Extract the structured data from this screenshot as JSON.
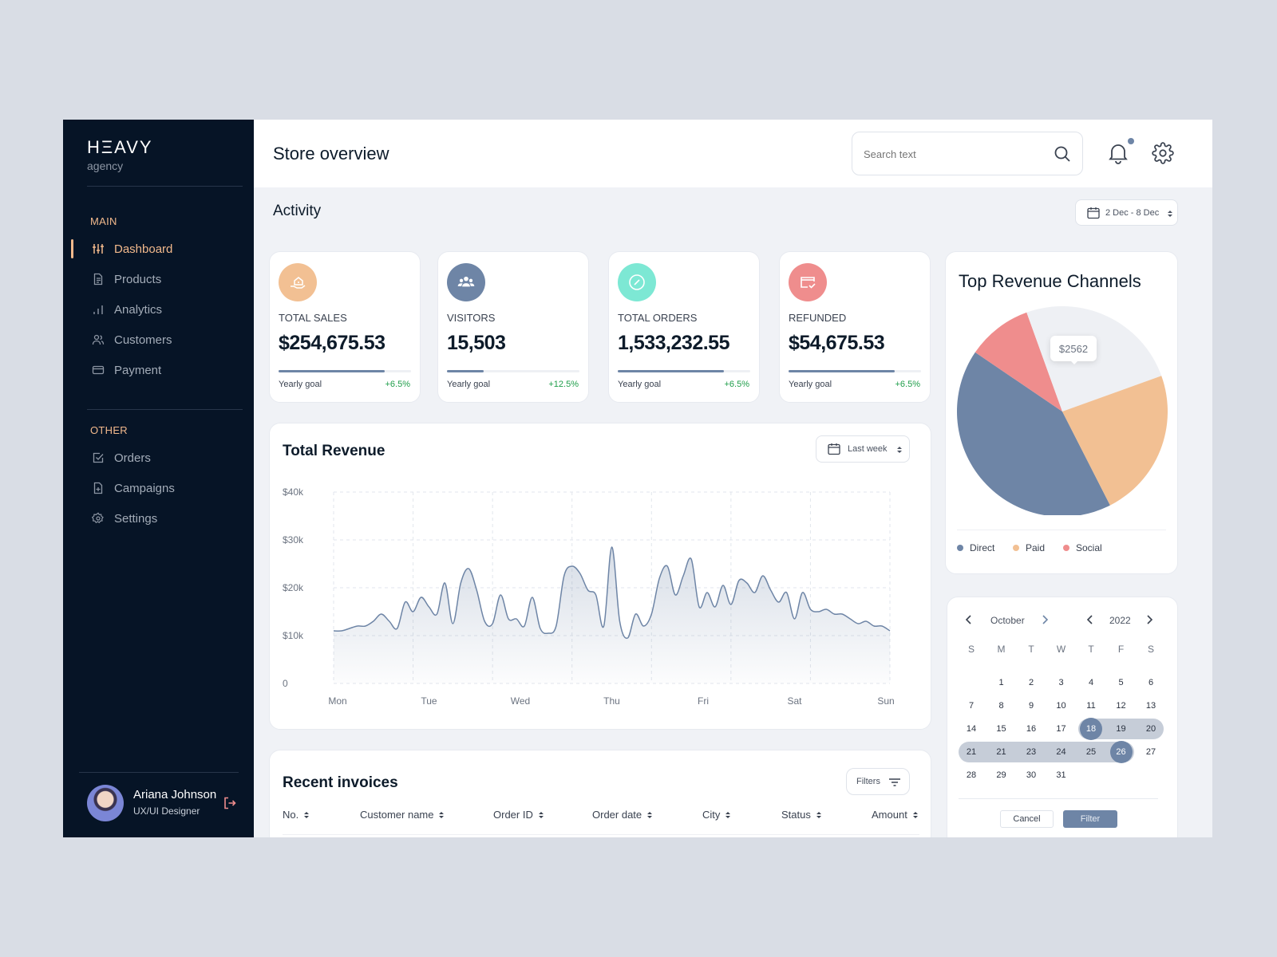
{
  "brand": {
    "name": "HΞAVY",
    "sub": "agency"
  },
  "sidebar": {
    "main_label": "MAIN",
    "other_label": "OTHER",
    "main_items": [
      {
        "label": "Dashboard",
        "icon": "sliders-icon"
      },
      {
        "label": "Products",
        "icon": "document-icon"
      },
      {
        "label": "Analytics",
        "icon": "bar-chart-icon"
      },
      {
        "label": "Customers",
        "icon": "users-icon"
      },
      {
        "label": "Payment",
        "icon": "card-icon"
      }
    ],
    "other_items": [
      {
        "label": "Orders",
        "icon": "checkbox-icon"
      },
      {
        "label": "Campaigns",
        "icon": "file-plus-icon"
      },
      {
        "label": "Settings",
        "icon": "gear-icon"
      }
    ],
    "active": "Dashboard"
  },
  "user": {
    "name": "Ariana Johnson",
    "role": "UX/UI Designer"
  },
  "header": {
    "title": "Store overview",
    "search_placeholder": "Search text"
  },
  "activity": {
    "title": "Activity",
    "date_range": "2 Dec - 8 Dec"
  },
  "stats": [
    {
      "label": "TOTAL SALES",
      "value": "$254,675.53",
      "goal_label": "Yearly goal",
      "change": "+6.5%",
      "progress": 0.8,
      "color": "#f2c093",
      "icon": "house-hand-icon"
    },
    {
      "label": "VISITORS",
      "value": "15,503",
      "goal_label": "Yearly goal",
      "change": "+12.5%",
      "progress": 0.28,
      "color": "#6e85a6",
      "icon": "group-icon"
    },
    {
      "label": "TOTAL ORDERS",
      "value": "1,533,232.55",
      "goal_label": "Yearly goal",
      "change": "+6.5%",
      "progress": 0.8,
      "color": "#7de8d4",
      "icon": "compass-icon"
    },
    {
      "label": "REFUNDED",
      "value": "$54,675.53",
      "goal_label": "Yearly goal",
      "change": "+6.5%",
      "progress": 0.8,
      "color": "#ef8d8d",
      "icon": "card-check-icon"
    }
  ],
  "revenue": {
    "title": "Total Revenue",
    "period": "Last week"
  },
  "chart_data": [
    {
      "type": "area",
      "title": "Total Revenue",
      "x_labels": [
        "Mon",
        "Tue",
        "Wed",
        "Thu",
        "Fri",
        "Sat",
        "Sun"
      ],
      "y_ticks": [
        "$40k",
        "$30k",
        "$20k",
        "$10k",
        "0"
      ],
      "ylim": [
        0,
        40000
      ],
      "grid": true,
      "series": [
        {
          "values": [
            11000,
            11000,
            11500,
            12000,
            12000,
            13000,
            14500,
            13000,
            11500,
            17000,
            15000,
            18000,
            16000,
            14500,
            21000,
            12500,
            21000,
            24000,
            19500,
            13000,
            12500,
            18500,
            13500,
            13500,
            12000,
            18000,
            11500,
            10500,
            12000,
            22500,
            24500,
            23000,
            19500,
            18500,
            12000,
            28500,
            13000,
            9500,
            14500,
            12000,
            14500,
            22000,
            24500,
            18500,
            22500,
            26000,
            16000,
            19000,
            16000,
            20500,
            16500,
            21500,
            21000,
            19000,
            22500,
            19500,
            17000,
            19000,
            13500,
            19000,
            15500,
            15000,
            15500,
            14500,
            14500,
            13500,
            12500,
            13000,
            12000,
            12000,
            11000
          ]
        }
      ]
    },
    {
      "type": "pie",
      "title": "Top Revenue Channels",
      "series": [
        {
          "name": "Direct",
          "value": 42,
          "color": "#6e85a6"
        },
        {
          "name": "Social",
          "value": 10,
          "color": "#ef8d8d"
        },
        {
          "name": "Other",
          "value": 25,
          "color": "#eef0f4"
        },
        {
          "name": "Paid",
          "value": 23,
          "color": "#f2c093"
        }
      ],
      "tooltip": "$2562",
      "legend": [
        "Direct",
        "Paid",
        "Social"
      ],
      "legend_placement": "bottom"
    }
  ],
  "calendar": {
    "month": "October",
    "year": "2022",
    "weekdays": [
      "S",
      "M",
      "T",
      "W",
      "T",
      "F",
      "S"
    ],
    "weeks": [
      [
        "",
        "1",
        "2",
        "3",
        "4",
        "5",
        "6"
      ],
      [
        "7",
        "8",
        "9",
        "10",
        "11",
        "12",
        "13"
      ],
      [
        "14",
        "15",
        "16",
        "17",
        "18",
        "19",
        "20"
      ],
      [
        "21",
        "21",
        "23",
        "24",
        "25",
        "26",
        "27"
      ],
      [
        "28",
        "29",
        "30",
        "31",
        "",
        "",
        ""
      ]
    ],
    "selected_start": "18",
    "selected_end": "26",
    "cancel_label": "Cancel",
    "filter_label": "Filter"
  },
  "invoices": {
    "title": "Recent invoices",
    "filters_label": "Filters",
    "columns": [
      "No.",
      "Customer name",
      "Order ID",
      "Order date",
      "City",
      "Status",
      "Amount"
    ]
  },
  "colors": {
    "accent": "#6e85a6",
    "sidebar": "#061426",
    "highlight": "#f2b98c",
    "positive": "#1f9e4a"
  }
}
